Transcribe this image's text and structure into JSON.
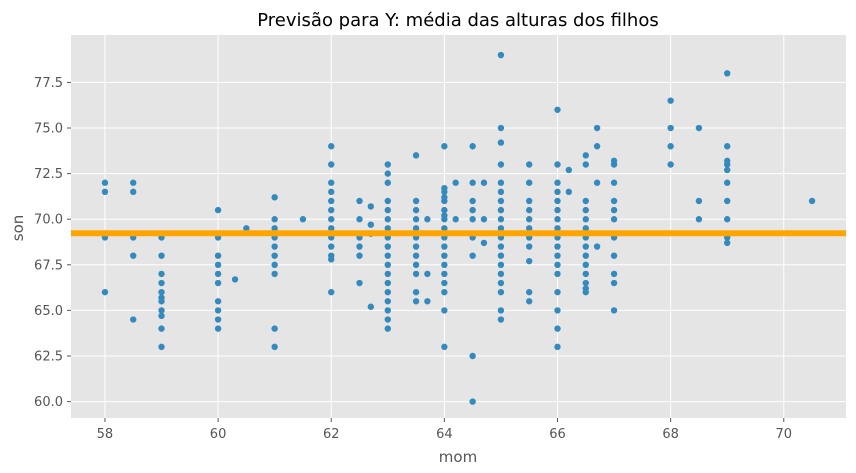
{
  "chart_data": {
    "type": "scatter",
    "title": "Previsão para Y: média das alturas dos filhos",
    "xlabel": "mom",
    "ylabel": "son",
    "xlim": [
      57.4,
      71.1
    ],
    "ylim": [
      59.1,
      80.1
    ],
    "xticks": [
      58,
      60,
      62,
      64,
      66,
      68,
      70
    ],
    "yticks": [
      60.0,
      62.5,
      65.0,
      67.5,
      70.0,
      72.5,
      75.0,
      77.5
    ],
    "xtick_labels": [
      "58",
      "60",
      "62",
      "64",
      "66",
      "68",
      "70"
    ],
    "ytick_labels": [
      "60.0",
      "62.5",
      "65.0",
      "67.5",
      "70.0",
      "72.5",
      "75.0",
      "77.5"
    ],
    "grid": true,
    "background": "#e5e5e5",
    "grid_color": "#ffffff",
    "point_color": "#348abd",
    "line_color": "#ffa500",
    "horizontal_line": {
      "y": 69.23
    },
    "points": [
      [
        58,
        72
      ],
      [
        58,
        71.5
      ],
      [
        58,
        69
      ],
      [
        58,
        66
      ],
      [
        58.5,
        72
      ],
      [
        58.5,
        71.5
      ],
      [
        58.5,
        69
      ],
      [
        58.5,
        68
      ],
      [
        58.5,
        64.5
      ],
      [
        59,
        69
      ],
      [
        59,
        68
      ],
      [
        59,
        67
      ],
      [
        59,
        66.5
      ],
      [
        59,
        66
      ],
      [
        59,
        65.7
      ],
      [
        59,
        65.5
      ],
      [
        59,
        65
      ],
      [
        59,
        64.7
      ],
      [
        59,
        64
      ],
      [
        59,
        63
      ],
      [
        60,
        70.5
      ],
      [
        60,
        69
      ],
      [
        60,
        68
      ],
      [
        60,
        67.5
      ],
      [
        60,
        67
      ],
      [
        60,
        66.5
      ],
      [
        60,
        65.5
      ],
      [
        60,
        65
      ],
      [
        60,
        64.5
      ],
      [
        60,
        64
      ],
      [
        60.3,
        66.7
      ],
      [
        60.5,
        69.5
      ],
      [
        61,
        71.2
      ],
      [
        61,
        70
      ],
      [
        61,
        69.5
      ],
      [
        61,
        69
      ],
      [
        61,
        68.5
      ],
      [
        61,
        68
      ],
      [
        61,
        67.5
      ],
      [
        61,
        67
      ],
      [
        61,
        64
      ],
      [
        61,
        63
      ],
      [
        61.5,
        70
      ],
      [
        62,
        74
      ],
      [
        62,
        73
      ],
      [
        62,
        72
      ],
      [
        62,
        71.5
      ],
      [
        62,
        71
      ],
      [
        62,
        70.5
      ],
      [
        62,
        70
      ],
      [
        62,
        69.5
      ],
      [
        62,
        69
      ],
      [
        62,
        68.5
      ],
      [
        62,
        68
      ],
      [
        62,
        67.8
      ],
      [
        62,
        66
      ],
      [
        62.5,
        71
      ],
      [
        62.5,
        70
      ],
      [
        62.5,
        69
      ],
      [
        62.5,
        68.5
      ],
      [
        62.5,
        68
      ],
      [
        62.5,
        66.5
      ],
      [
        62.7,
        70.7
      ],
      [
        62.7,
        69.7
      ],
      [
        62.7,
        69.2
      ],
      [
        62.7,
        65.2
      ],
      [
        63,
        73
      ],
      [
        63,
        72.5
      ],
      [
        63,
        72
      ],
      [
        63,
        71
      ],
      [
        63,
        70.5
      ],
      [
        63,
        70
      ],
      [
        63,
        69.5
      ],
      [
        63,
        69
      ],
      [
        63,
        68.5
      ],
      [
        63,
        68
      ],
      [
        63,
        67.5
      ],
      [
        63,
        67
      ],
      [
        63,
        66.5
      ],
      [
        63,
        66
      ],
      [
        63,
        65.5
      ],
      [
        63,
        65
      ],
      [
        63,
        64.5
      ],
      [
        63,
        64
      ],
      [
        63.5,
        73.5
      ],
      [
        63.5,
        71
      ],
      [
        63.5,
        70.5
      ],
      [
        63.5,
        70
      ],
      [
        63.5,
        69.5
      ],
      [
        63.5,
        69
      ],
      [
        63.5,
        68.5
      ],
      [
        63.5,
        68
      ],
      [
        63.5,
        67.5
      ],
      [
        63.5,
        67
      ],
      [
        63.5,
        66
      ],
      [
        63.5,
        65.5
      ],
      [
        63.7,
        70
      ],
      [
        63.7,
        67
      ],
      [
        63.7,
        65.5
      ],
      [
        64,
        74
      ],
      [
        64,
        71.7
      ],
      [
        64,
        71.5
      ],
      [
        64,
        71.2
      ],
      [
        64,
        71
      ],
      [
        64,
        70.5
      ],
      [
        64,
        70.2
      ],
      [
        64,
        70
      ],
      [
        64,
        69.5
      ],
      [
        64,
        69
      ],
      [
        64,
        68.5
      ],
      [
        64,
        68
      ],
      [
        64,
        67.5
      ],
      [
        64,
        67
      ],
      [
        64,
        66.5
      ],
      [
        64,
        66
      ],
      [
        64,
        65
      ],
      [
        64,
        63
      ],
      [
        64.2,
        72
      ],
      [
        64.2,
        70
      ],
      [
        64.5,
        74
      ],
      [
        64.5,
        72
      ],
      [
        64.5,
        71
      ],
      [
        64.5,
        70.5
      ],
      [
        64.5,
        70
      ],
      [
        64.5,
        69
      ],
      [
        64.5,
        68
      ],
      [
        64.5,
        62.5
      ],
      [
        64.5,
        60
      ],
      [
        64.7,
        72
      ],
      [
        64.7,
        70
      ],
      [
        64.7,
        68.7
      ],
      [
        65,
        79
      ],
      [
        65,
        75
      ],
      [
        65,
        74.2
      ],
      [
        65,
        73
      ],
      [
        65,
        72
      ],
      [
        65,
        71.5
      ],
      [
        65,
        71
      ],
      [
        65,
        70.5
      ],
      [
        65,
        70
      ],
      [
        65,
        69.5
      ],
      [
        65,
        69
      ],
      [
        65,
        68.5
      ],
      [
        65,
        68
      ],
      [
        65,
        67.5
      ],
      [
        65,
        67
      ],
      [
        65,
        66.5
      ],
      [
        65,
        66
      ],
      [
        65,
        65
      ],
      [
        65,
        64.5
      ],
      [
        65.5,
        73
      ],
      [
        65.5,
        72
      ],
      [
        65.5,
        71
      ],
      [
        65.5,
        70.5
      ],
      [
        65.5,
        70
      ],
      [
        65.5,
        69.5
      ],
      [
        65.5,
        69
      ],
      [
        65.5,
        68.5
      ],
      [
        65.5,
        67.7
      ],
      [
        65.5,
        66
      ],
      [
        65.5,
        65.5
      ],
      [
        66,
        76
      ],
      [
        66,
        73
      ],
      [
        66,
        72
      ],
      [
        66,
        71.5
      ],
      [
        66,
        71
      ],
      [
        66,
        70.5
      ],
      [
        66,
        70
      ],
      [
        66,
        69.5
      ],
      [
        66,
        69
      ],
      [
        66,
        68.5
      ],
      [
        66,
        68
      ],
      [
        66,
        67.5
      ],
      [
        66,
        67
      ],
      [
        66,
        66
      ],
      [
        66,
        65
      ],
      [
        66,
        64
      ],
      [
        66,
        63
      ],
      [
        66.2,
        72.7
      ],
      [
        66.2,
        71.5
      ],
      [
        66.5,
        73.5
      ],
      [
        66.5,
        73
      ],
      [
        66.5,
        71
      ],
      [
        66.5,
        70.5
      ],
      [
        66.5,
        70
      ],
      [
        66.5,
        69.5
      ],
      [
        66.5,
        69
      ],
      [
        66.5,
        68.5
      ],
      [
        66.5,
        68
      ],
      [
        66.5,
        67.5
      ],
      [
        66.5,
        67
      ],
      [
        66.5,
        66.5
      ],
      [
        66.5,
        66.2
      ],
      [
        66.5,
        66
      ],
      [
        66.7,
        75
      ],
      [
        66.7,
        74
      ],
      [
        66.7,
        72
      ],
      [
        66.7,
        68.5
      ],
      [
        67,
        73.2
      ],
      [
        67,
        73
      ],
      [
        67,
        72
      ],
      [
        67,
        71
      ],
      [
        67,
        70.5
      ],
      [
        67,
        70
      ],
      [
        67,
        69
      ],
      [
        67,
        68
      ],
      [
        67,
        67
      ],
      [
        67,
        66.5
      ],
      [
        67,
        65
      ],
      [
        68,
        76.5
      ],
      [
        68,
        75
      ],
      [
        68,
        74
      ],
      [
        68,
        73
      ],
      [
        68.5,
        75
      ],
      [
        68.5,
        71
      ],
      [
        68.5,
        70
      ],
      [
        69,
        78
      ],
      [
        69,
        74
      ],
      [
        69,
        73.2
      ],
      [
        69,
        73
      ],
      [
        69,
        72.7
      ],
      [
        69,
        72
      ],
      [
        69,
        71
      ],
      [
        69,
        70
      ],
      [
        69,
        69
      ],
      [
        69,
        68.7
      ],
      [
        70.5,
        71
      ]
    ]
  }
}
